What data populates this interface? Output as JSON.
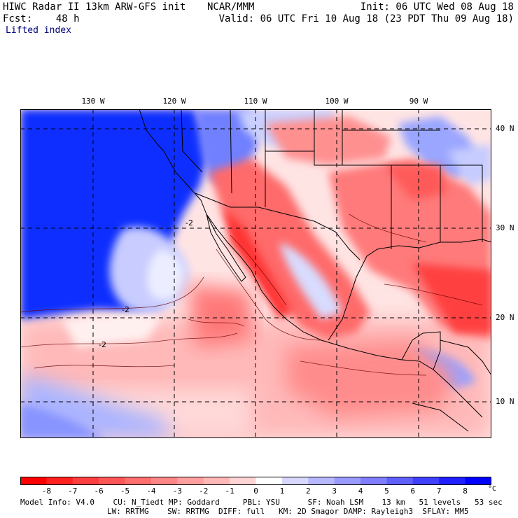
{
  "header": {
    "title": "HIWC Radar II 13km ARW-GFS init",
    "organization": "NCAR/MMM",
    "forecast": "Fcst:    48 h",
    "init": "Init: 06 UTC Wed 08 Aug 18",
    "valid": "Valid: 06 UTC Fri 10 Aug 18 (23 PDT Thu 09 Aug 18)",
    "field": "Lifted index"
  },
  "map": {
    "longitude_labels": [
      "130 W",
      "120 W",
      "110 W",
      "100 W",
      "90 W"
    ],
    "latitude_labels": [
      "40 N",
      "30 N",
      "20 N",
      "10 N"
    ],
    "contour_label": "-2"
  },
  "colorbar": {
    "labels": [
      "-8",
      "-7",
      "-6",
      "-5",
      "-4",
      "-3",
      "-2",
      "-1",
      "0",
      "1",
      "2",
      "3",
      "4",
      "5",
      "6",
      "7",
      "8"
    ],
    "unit": "°C",
    "colors": [
      "#ff0000",
      "#ff2020",
      "#ff3f3f",
      "#ff5757",
      "#ff6f6f",
      "#ff8787",
      "#ff9f9f",
      "#ffb8b8",
      "#ffd4d4",
      "#ffffff",
      "#d8d8ff",
      "#b8b8ff",
      "#9b9bff",
      "#7f7fff",
      "#6060ff",
      "#4040ff",
      "#2020ff",
      "#0000ff"
    ]
  },
  "model_info": {
    "line1": "Model Info: V4.0    CU: N_Tiedt MP: Goddard     PBL: YSU      SF: Noah LSM    13 km   51 levels   53 sec",
    "line2": "LW: RRTMG    SW: RRTMG  DIFF: full   KM: 2D Smagor DAMP: Rayleigh3  SFLAY: MM5"
  }
}
